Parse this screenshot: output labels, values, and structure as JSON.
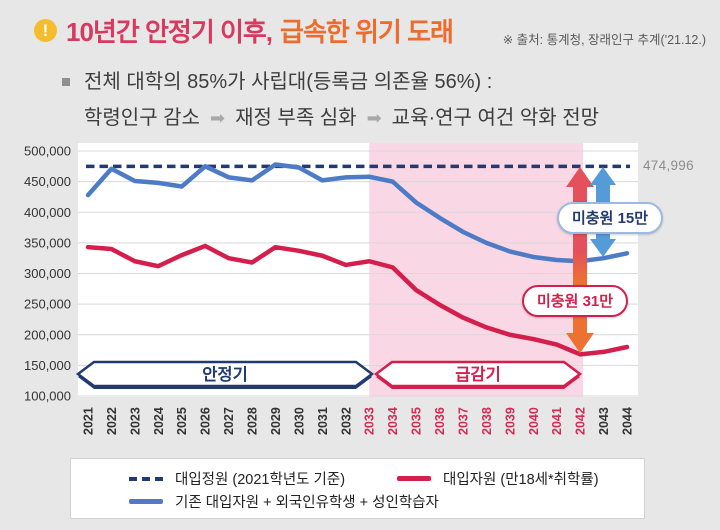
{
  "header": {
    "title_part1": "10년간 안정기 이후,",
    "title_part2": "급속한 위기 도래",
    "source": "※ 출처: 통계청, 장래인구 추계('21.12.)"
  },
  "summary": {
    "line1": "전체 대학의 85%가 사립대(등록금 의존율 56%) :",
    "step1": "학령인구 감소",
    "step2": "재정 부족 심화",
    "step3": "교육·연구 여건 악화 전망",
    "arrow_glyph": "➡"
  },
  "chart_data": {
    "type": "line",
    "x": [
      2021,
      2022,
      2023,
      2024,
      2025,
      2026,
      2027,
      2028,
      2029,
      2030,
      2031,
      2032,
      2033,
      2034,
      2035,
      2036,
      2037,
      2038,
      2039,
      2040,
      2041,
      2042,
      2043,
      2044
    ],
    "series": [
      {
        "name": "대입정원 (2021학년도 기준)",
        "style": "dashed",
        "color": "#223a72",
        "value": 474996
      },
      {
        "name": "기존 대입자원 + 외국인유학생 + 성인학습자",
        "style": "solid",
        "color": "#4d7bc6",
        "values": [
          428000,
          471000,
          451000,
          448000,
          442000,
          475000,
          457000,
          452000,
          478000,
          473000,
          452000,
          457000,
          458000,
          450000,
          416000,
          391000,
          368000,
          350000,
          336000,
          327000,
          322000,
          320000,
          325000,
          333000
        ]
      },
      {
        "name": "대입자원 (만18세*취학률)",
        "style": "solid",
        "color": "#d41f4d",
        "values": [
          343000,
          340000,
          320000,
          312000,
          330000,
          345000,
          325000,
          318000,
          343000,
          337000,
          329000,
          314000,
          320000,
          310000,
          273000,
          249000,
          228000,
          212000,
          200000,
          193000,
          184000,
          168000,
          172000,
          180000
        ]
      }
    ],
    "ylim": [
      100000,
      500000
    ],
    "ytick_step": 50000,
    "grid": true,
    "legend_position": "bottom",
    "highlight_region": {
      "from": 2033,
      "to": 2042,
      "color": "#f9d7e4"
    },
    "annotations": {
      "capacity_label": "474,996",
      "shortfall_15": "미충원 15만",
      "shortfall_31": "미충원 31만",
      "stable_period": "안정기",
      "decline_period": "급감기"
    },
    "colors": {
      "grid": "#d9d9d9",
      "tick": "#333333",
      "tick_highlight": "#d42a55",
      "arrow_red": "#e4505b",
      "arrow_orange": "#ec7233",
      "arrow_blue": "#549bd7"
    }
  }
}
